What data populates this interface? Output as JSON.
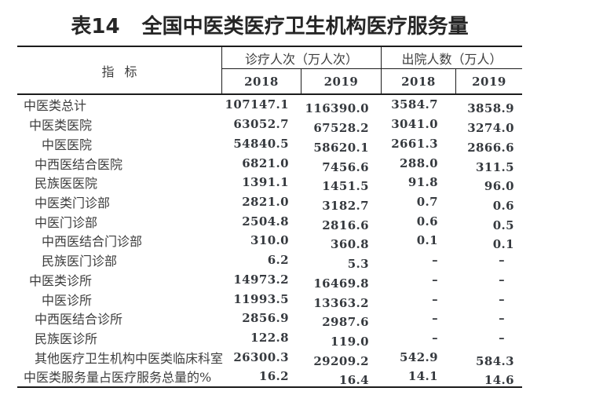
{
  "title": {
    "number": "表14",
    "text": "全国中医类医疗卫生机构医疗服务量"
  },
  "header": {
    "indicator": "指 标",
    "groups": [
      {
        "label": "诊疗人次（万人次）",
        "years": [
          "2018",
          "2019"
        ]
      },
      {
        "label": "出院人数（万人）",
        "years": [
          "2018",
          "2019"
        ]
      }
    ]
  },
  "na_symbol": "–",
  "table": {
    "rows": [
      {
        "label": "中医类总计",
        "indent": 0,
        "values": [
          "107147.1",
          "116390.0",
          "3584.7",
          "3858.9"
        ]
      },
      {
        "label": "中医类医院",
        "indent": 1,
        "values": [
          "63052.7",
          "67528.2",
          "3041.0",
          "3274.0"
        ]
      },
      {
        "label": "中医医院",
        "indent": 3,
        "values": [
          "54840.5",
          "58620.1",
          "2661.3",
          "2866.6"
        ]
      },
      {
        "label": "中西医结合医院",
        "indent": 2,
        "values": [
          "6821.0",
          "7456.6",
          "288.0",
          "311.5"
        ]
      },
      {
        "label": "民族医医院",
        "indent": 2,
        "values": [
          "1391.1",
          "1451.5",
          "91.8",
          "96.0"
        ]
      },
      {
        "label": "中医类门诊部",
        "indent": 2,
        "values": [
          "2821.0",
          "3182.7",
          "0.7",
          "0.6"
        ]
      },
      {
        "label": "中医门诊部",
        "indent": 2,
        "values": [
          "2504.8",
          "2816.6",
          "0.6",
          "0.5"
        ]
      },
      {
        "label": "中西医结合门诊部",
        "indent": 3,
        "values": [
          "310.0",
          "360.8",
          "0.1",
          "0.1"
        ]
      },
      {
        "label": "民族医门诊部",
        "indent": 3,
        "values": [
          "6.2",
          "5.3",
          "–",
          "–"
        ]
      },
      {
        "label": "中医类诊所",
        "indent": 1,
        "values": [
          "14973.2",
          "16469.8",
          "–",
          "–"
        ]
      },
      {
        "label": "中医诊所",
        "indent": 3,
        "values": [
          "11993.5",
          "13363.2",
          "–",
          "–"
        ]
      },
      {
        "label": "中西医结合诊所",
        "indent": 2,
        "values": [
          "2856.9",
          "2987.6",
          "–",
          "–"
        ]
      },
      {
        "label": "民族医诊所",
        "indent": 2,
        "values": [
          "122.8",
          "119.0",
          "–",
          "–"
        ]
      },
      {
        "label": "其他医疗卫生机构中医类临床科室",
        "indent": 2,
        "values": [
          "26300.3",
          "29209.2",
          "542.9",
          "584.3"
        ]
      },
      {
        "label": "中医类服务量占医疗服务总量的%",
        "indent": 0,
        "values": [
          "16.2",
          "16.4",
          "14.1",
          "14.6"
        ]
      }
    ]
  }
}
